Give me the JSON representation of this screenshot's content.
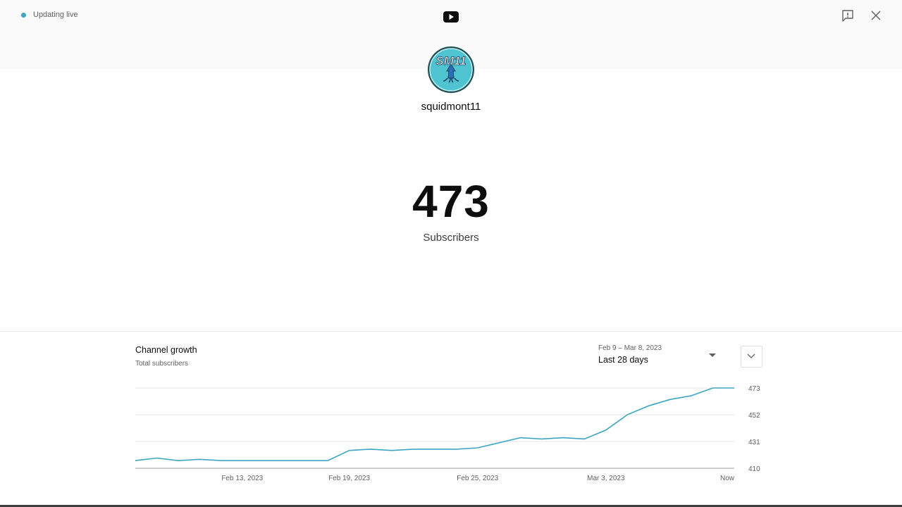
{
  "header": {
    "live_status": "Updating live",
    "accent_color": "#3ea6c2"
  },
  "icons": {
    "logo": "youtube-logo-icon",
    "feedback": "feedback-icon",
    "close": "close-icon"
  },
  "channel": {
    "name": "squidmont11",
    "avatar_text": "SM11"
  },
  "stats": {
    "subscriber_count": "473",
    "subscriber_label": "Subscribers"
  },
  "growth": {
    "title": "Channel growth",
    "subtitle": "Total subscribers",
    "range_dates": "Feb 9 – Mar 8, 2023",
    "range_label": "Last 28 days"
  },
  "chart_data": {
    "type": "line",
    "title": "Channel growth",
    "subtitle": "Total subscribers",
    "y_ticks": [
      410,
      431,
      452,
      473
    ],
    "ylim": [
      410,
      473
    ],
    "x_tick_labels": [
      "Feb 13, 2023",
      "Feb 19, 2023",
      "Feb 25, 2023",
      "Mar 3, 2023",
      "Now"
    ],
    "x_tick_index": [
      5,
      10,
      16,
      22,
      28
    ],
    "grid": "horizontal",
    "line_color": "#3ea6c2",
    "series": [
      {
        "values": [
          416,
          418,
          416,
          417,
          416,
          416,
          416,
          416,
          416,
          416,
          424,
          425,
          424,
          425,
          425,
          425,
          426,
          430,
          434,
          433,
          434,
          433,
          440,
          452,
          459,
          464,
          467,
          473,
          473
        ]
      }
    ]
  }
}
